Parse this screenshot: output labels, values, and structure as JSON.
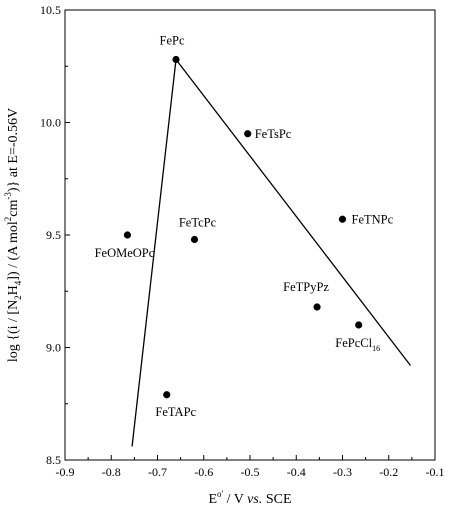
{
  "chart_data": {
    "type": "scatter",
    "xlim": [
      -0.9,
      -0.1
    ],
    "ylim": [
      8.5,
      10.5
    ],
    "xticks": [
      "-0.9",
      "-0.8",
      "-0.7",
      "-0.6",
      "-0.5",
      "-0.4",
      "-0.3",
      "-0.2",
      "-0.1"
    ],
    "yticks": [
      "8.5",
      "9.0",
      "9.5",
      "10.0",
      "10.5"
    ],
    "xlabel": {
      "E": "E",
      "sup": "o'",
      "rest": " / V ",
      "italic": "vs.",
      "end": " SCE"
    },
    "ylabel": {
      "a": "log {(i / [N",
      "b": "H",
      "c": "]) / (A mol",
      "d": "cm",
      "e": ")} at E=-0.56V",
      "sub2": "2",
      "sub4": "4",
      "sup2": "2",
      "supm3": "-3"
    },
    "points": [
      {
        "label": "FePc",
        "x": -0.66,
        "y": 10.28
      },
      {
        "label": "FeTsPc",
        "x": -0.505,
        "y": 9.95
      },
      {
        "label": "FeTNPc",
        "x": -0.3,
        "y": 9.57
      },
      {
        "label": "FeTcPc",
        "x": -0.62,
        "y": 9.48
      },
      {
        "label": "FeOMeOPc",
        "x": -0.765,
        "y": 9.5
      },
      {
        "label": "FeTPyPz",
        "x": -0.355,
        "y": 9.18
      },
      {
        "label": "FePcCl",
        "sub": "16",
        "x": -0.265,
        "y": 9.1
      },
      {
        "label": "FeTAPc",
        "x": -0.68,
        "y": 8.79
      }
    ],
    "lines": [
      {
        "x": [
          -0.755,
          -0.66
        ],
        "y": [
          8.56,
          10.28
        ]
      },
      {
        "x": [
          -0.66,
          -0.153
        ],
        "y": [
          10.28,
          8.92
        ]
      }
    ],
    "grid": false
  }
}
